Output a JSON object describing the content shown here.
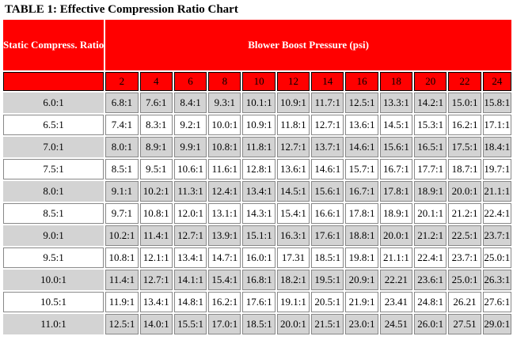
{
  "title": "TABLE 1: Effective Compression Ratio Chart",
  "header": {
    "corner_label": "Static Compress. Ratio",
    "group_label": "Blower Boost Pressure (psi)"
  },
  "boost_columns": [
    "2",
    "4",
    "6",
    "8",
    "10",
    "12",
    "14",
    "16",
    "18",
    "20",
    "22",
    "24"
  ],
  "rows": [
    {
      "ratio": "6.0:1",
      "values": [
        "6.8:1",
        "7.6:1",
        "8.4:1",
        "9.3:1",
        "10.1:1",
        "10.9:1",
        "11.7:1",
        "12.5:1",
        "13.3:1",
        "14.2:1",
        "15.0:1",
        "15.8:1"
      ]
    },
    {
      "ratio": "6.5:1",
      "values": [
        "7.4:1",
        "8.3:1",
        "9.2:1",
        "10.0:1",
        "10.9:1",
        "11.8:1",
        "12.7:1",
        "13.6:1",
        "14.5:1",
        "15.3:1",
        "16.2:1",
        "17.1:1"
      ]
    },
    {
      "ratio": "7.0:1",
      "values": [
        "8.0:1",
        "8.9:1",
        "9.9:1",
        "10.8:1",
        "11.8:1",
        "12.7:1",
        "13.7:1",
        "14.6:1",
        "15.6:1",
        "16.5:1",
        "17.5:1",
        "18.4:1"
      ]
    },
    {
      "ratio": "7.5:1",
      "values": [
        "8.5:1",
        "9.5:1",
        "10.6:1",
        "11.6:1",
        "12.8:1",
        "13.6:1",
        "14.6:1",
        "15.7:1",
        "16.7:1",
        "17.7:1",
        "18.7:1",
        "19.7:1"
      ]
    },
    {
      "ratio": "8.0:1",
      "values": [
        "9.1:1",
        "10.2:1",
        "11.3:1",
        "12.4:1",
        "13.4:1",
        "14.5:1",
        "15.6:1",
        "16.7:1",
        "17.8:1",
        "18.9:1",
        "20.0:1",
        "21.1:1"
      ]
    },
    {
      "ratio": "8.5:1",
      "values": [
        "9.7:1",
        "10.8:1",
        "12.0:1",
        "13.1:1",
        "14.3:1",
        "15.4:1",
        "16.6:1",
        "17.8:1",
        "18.9:1",
        "20.1:1",
        "21.2:1",
        "22.4:1"
      ]
    },
    {
      "ratio": "9.0:1",
      "values": [
        "10.2:1",
        "11.4:1",
        "12.7:1",
        "13.9:1",
        "15.1:1",
        "16.3:1",
        "17.6:1",
        "18.8:1",
        "20.0:1",
        "21.2:1",
        "22.5:1",
        "23.7:1"
      ]
    },
    {
      "ratio": "9.5:1",
      "values": [
        "10.8:1",
        "12.1:1",
        "13.4:1",
        "14.7:1",
        "16.0:1",
        "17.31",
        "18.5:1",
        "19.8:1",
        "21.1:1",
        "22.4:1",
        "23.7:1",
        "25.0:1"
      ]
    },
    {
      "ratio": "10.0:1",
      "values": [
        "11.4:1",
        "12.7:1",
        "14.1:1",
        "15.4:1",
        "16.8:1",
        "18.2:1",
        "19.5:1",
        "20.9:1",
        "22.21",
        "23.6:1",
        "25.0:1",
        "26.3:1"
      ]
    },
    {
      "ratio": "10.5:1",
      "values": [
        "11.9:1",
        "13.4:1",
        "14.8:1",
        "16.2:1",
        "17.6:1",
        "19.1:1",
        "20.5:1",
        "21.9:1",
        "23.41",
        "24.8:1",
        "26.21",
        "27.6:1"
      ]
    },
    {
      "ratio": "11.0:1",
      "values": [
        "12.5:1",
        "14.0:1",
        "15.5:1",
        "17.0:1",
        "18.5:1",
        "20.0:1",
        "21.5:1",
        "23.0:1",
        "24.51",
        "26.0:1",
        "27.51",
        "29.0:1"
      ]
    }
  ],
  "colors": {
    "header_bg": "#ff0000",
    "shade_bg": "#d3d3d3"
  }
}
